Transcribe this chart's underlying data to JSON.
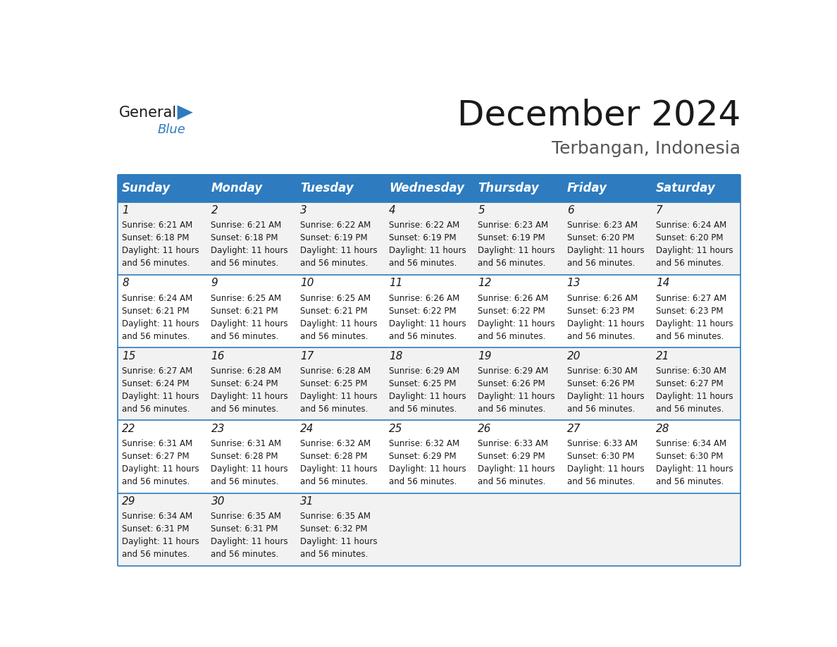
{
  "title": "December 2024",
  "subtitle": "Terbangan, Indonesia",
  "header_bg_color": "#2E7BBF",
  "header_text_color": "#FFFFFF",
  "cell_bg_color_odd": "#F2F2F2",
  "cell_bg_color_even": "#FFFFFF",
  "border_color": "#2E7BBF",
  "day_names": [
    "Sunday",
    "Monday",
    "Tuesday",
    "Wednesday",
    "Thursday",
    "Friday",
    "Saturday"
  ],
  "weeks": [
    [
      {
        "day": 1,
        "sunrise": "6:21 AM",
        "sunset": "6:18 PM"
      },
      {
        "day": 2,
        "sunrise": "6:21 AM",
        "sunset": "6:18 PM"
      },
      {
        "day": 3,
        "sunrise": "6:22 AM",
        "sunset": "6:19 PM"
      },
      {
        "day": 4,
        "sunrise": "6:22 AM",
        "sunset": "6:19 PM"
      },
      {
        "day": 5,
        "sunrise": "6:23 AM",
        "sunset": "6:19 PM"
      },
      {
        "day": 6,
        "sunrise": "6:23 AM",
        "sunset": "6:20 PM"
      },
      {
        "day": 7,
        "sunrise": "6:24 AM",
        "sunset": "6:20 PM"
      }
    ],
    [
      {
        "day": 8,
        "sunrise": "6:24 AM",
        "sunset": "6:21 PM"
      },
      {
        "day": 9,
        "sunrise": "6:25 AM",
        "sunset": "6:21 PM"
      },
      {
        "day": 10,
        "sunrise": "6:25 AM",
        "sunset": "6:21 PM"
      },
      {
        "day": 11,
        "sunrise": "6:26 AM",
        "sunset": "6:22 PM"
      },
      {
        "day": 12,
        "sunrise": "6:26 AM",
        "sunset": "6:22 PM"
      },
      {
        "day": 13,
        "sunrise": "6:26 AM",
        "sunset": "6:23 PM"
      },
      {
        "day": 14,
        "sunrise": "6:27 AM",
        "sunset": "6:23 PM"
      }
    ],
    [
      {
        "day": 15,
        "sunrise": "6:27 AM",
        "sunset": "6:24 PM"
      },
      {
        "day": 16,
        "sunrise": "6:28 AM",
        "sunset": "6:24 PM"
      },
      {
        "day": 17,
        "sunrise": "6:28 AM",
        "sunset": "6:25 PM"
      },
      {
        "day": 18,
        "sunrise": "6:29 AM",
        "sunset": "6:25 PM"
      },
      {
        "day": 19,
        "sunrise": "6:29 AM",
        "sunset": "6:26 PM"
      },
      {
        "day": 20,
        "sunrise": "6:30 AM",
        "sunset": "6:26 PM"
      },
      {
        "day": 21,
        "sunrise": "6:30 AM",
        "sunset": "6:27 PM"
      }
    ],
    [
      {
        "day": 22,
        "sunrise": "6:31 AM",
        "sunset": "6:27 PM"
      },
      {
        "day": 23,
        "sunrise": "6:31 AM",
        "sunset": "6:28 PM"
      },
      {
        "day": 24,
        "sunrise": "6:32 AM",
        "sunset": "6:28 PM"
      },
      {
        "day": 25,
        "sunrise": "6:32 AM",
        "sunset": "6:29 PM"
      },
      {
        "day": 26,
        "sunrise": "6:33 AM",
        "sunset": "6:29 PM"
      },
      {
        "day": 27,
        "sunrise": "6:33 AM",
        "sunset": "6:30 PM"
      },
      {
        "day": 28,
        "sunrise": "6:34 AM",
        "sunset": "6:30 PM"
      }
    ],
    [
      {
        "day": 29,
        "sunrise": "6:34 AM",
        "sunset": "6:31 PM"
      },
      {
        "day": 30,
        "sunrise": "6:35 AM",
        "sunset": "6:31 PM"
      },
      {
        "day": 31,
        "sunrise": "6:35 AM",
        "sunset": "6:32 PM"
      },
      null,
      null,
      null,
      null
    ]
  ],
  "logo_general_color": "#1a1a1a",
  "logo_blue_color": "#2E7BBF",
  "title_fontsize": 36,
  "subtitle_fontsize": 18,
  "header_fontsize": 12,
  "day_num_fontsize": 11,
  "cell_text_fontsize": 8.5
}
